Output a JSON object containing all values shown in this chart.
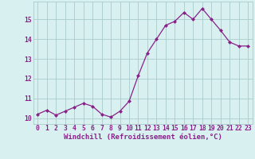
{
  "x": [
    0,
    1,
    2,
    3,
    4,
    5,
    6,
    7,
    8,
    9,
    10,
    11,
    12,
    13,
    14,
    15,
    16,
    17,
    18,
    19,
    20,
    21,
    22,
    23
  ],
  "y": [
    10.2,
    10.4,
    10.15,
    10.35,
    10.55,
    10.75,
    10.6,
    10.2,
    10.05,
    10.35,
    10.85,
    12.15,
    13.3,
    14.0,
    14.7,
    14.9,
    15.35,
    15.0,
    15.55,
    15.0,
    14.45,
    13.85,
    13.65,
    13.65
  ],
  "line_color": "#882288",
  "marker": "D",
  "markersize": 2.0,
  "linewidth": 0.9,
  "xlabel": "Windchill (Refroidissement éolien,°C)",
  "bg_color": "#d8f0f0",
  "grid_color": "#aacccc",
  "tick_label_color": "#882288",
  "ylim": [
    9.7,
    15.9
  ],
  "yticks": [
    10,
    11,
    12,
    13,
    14,
    15
  ],
  "xticks": [
    0,
    1,
    2,
    3,
    4,
    5,
    6,
    7,
    8,
    9,
    10,
    11,
    12,
    13,
    14,
    15,
    16,
    17,
    18,
    19,
    20,
    21,
    22,
    23
  ],
  "tick_fontsize": 5.8,
  "xlabel_fontsize": 6.5
}
